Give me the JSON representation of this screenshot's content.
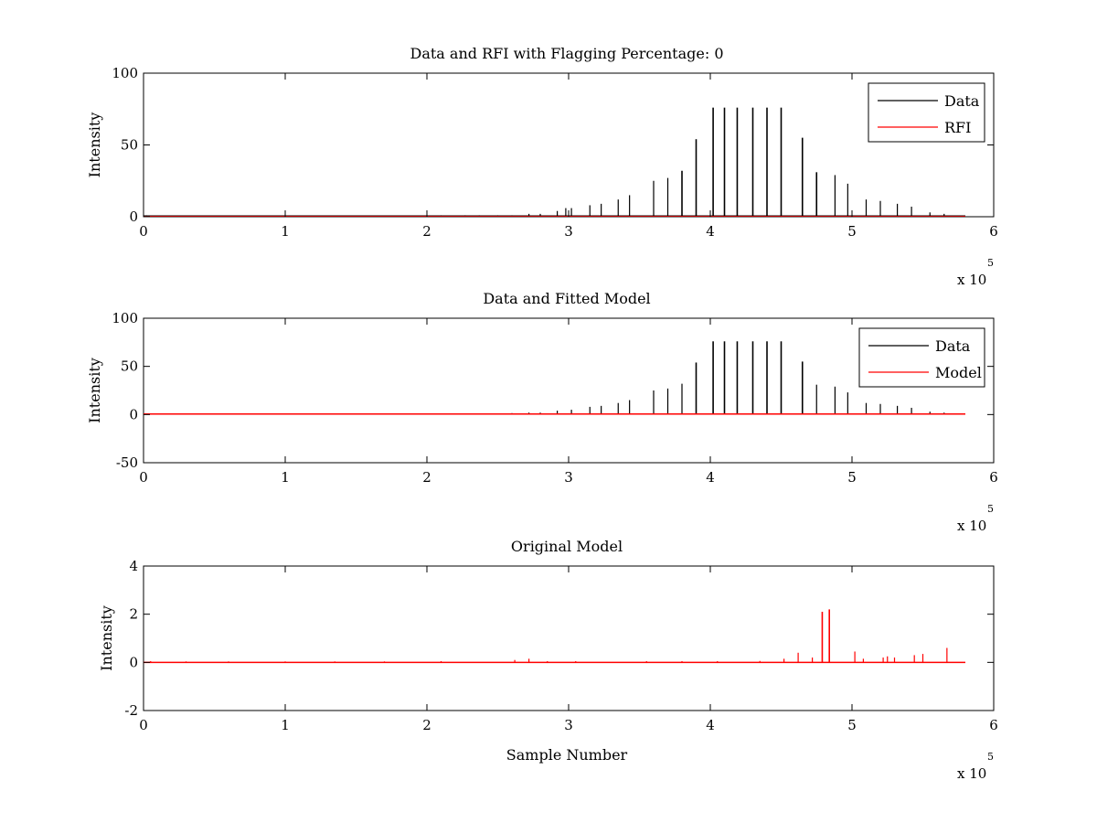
{
  "figure": {
    "background": "#ffffff"
  },
  "chart_data": [
    {
      "type": "line",
      "title": "Data and RFI with Flagging Percentage: 0",
      "xlabel": "",
      "ylabel": "Intensity",
      "xlim": [
        0,
        6
      ],
      "ylim": [
        0,
        100
      ],
      "xticks": [
        0,
        1,
        2,
        3,
        4,
        5,
        6
      ],
      "yticks": [
        0,
        50,
        100
      ],
      "x_multiplier": {
        "base": "x 10",
        "exponent": "5"
      },
      "legend": {
        "placement": "top-right",
        "entries": [
          "Data",
          "RFI"
        ]
      },
      "x_end": 5.8,
      "series": [
        {
          "name": "Data",
          "color": "#000000",
          "baseline": 0.5,
          "spikes": [
            [
              0.02,
              1
            ],
            [
              0.32,
              0.8
            ],
            [
              0.62,
              0.8
            ],
            [
              1.0,
              0.8
            ],
            [
              1.3,
              0.8
            ],
            [
              1.62,
              0.8
            ],
            [
              1.95,
              0.8
            ],
            [
              2.1,
              1
            ],
            [
              2.27,
              1
            ],
            [
              2.37,
              1
            ],
            [
              2.5,
              1
            ],
            [
              2.6,
              1
            ],
            [
              2.72,
              2
            ],
            [
              2.8,
              2
            ],
            [
              2.92,
              4
            ],
            [
              2.98,
              6
            ],
            [
              3.02,
              6
            ],
            [
              3.15,
              8
            ],
            [
              3.23,
              9
            ],
            [
              3.35,
              12
            ],
            [
              3.43,
              15
            ],
            [
              3.6,
              25
            ],
            [
              3.7,
              27
            ],
            [
              3.8,
              32
            ],
            [
              3.9,
              54
            ],
            [
              4.02,
              76
            ],
            [
              4.1,
              76
            ],
            [
              4.19,
              76
            ],
            [
              4.3,
              76
            ],
            [
              4.4,
              76
            ],
            [
              4.5,
              76
            ],
            [
              4.65,
              55
            ],
            [
              4.75,
              31
            ],
            [
              4.88,
              29
            ],
            [
              4.97,
              23
            ],
            [
              5.1,
              12
            ],
            [
              5.2,
              11
            ],
            [
              5.32,
              9
            ],
            [
              5.42,
              7
            ],
            [
              5.55,
              3
            ],
            [
              5.65,
              2
            ]
          ]
        },
        {
          "name": "RFI",
          "color": "#ff0000",
          "baseline": 0,
          "spikes": []
        }
      ]
    },
    {
      "type": "line",
      "title": "Data and Fitted Model",
      "xlabel": "",
      "ylabel": "Intensity",
      "xlim": [
        0,
        6
      ],
      "ylim": [
        -50,
        100
      ],
      "xticks": [
        0,
        1,
        2,
        3,
        4,
        5,
        6
      ],
      "yticks": [
        -50,
        0,
        50,
        100
      ],
      "x_multiplier": {
        "base": "x 10",
        "exponent": "5"
      },
      "legend": {
        "placement": "top-right",
        "entries": [
          "Data",
          "Model"
        ]
      },
      "x_end": 5.8,
      "series": [
        {
          "name": "Data",
          "color": "#000000",
          "baseline": 0.5,
          "spikes": [
            [
              2.27,
              1
            ],
            [
              2.37,
              1
            ],
            [
              2.6,
              1.5
            ],
            [
              2.72,
              2
            ],
            [
              2.8,
              2
            ],
            [
              2.92,
              4
            ],
            [
              3.02,
              5
            ],
            [
              3.15,
              8
            ],
            [
              3.23,
              9
            ],
            [
              3.35,
              12
            ],
            [
              3.43,
              15
            ],
            [
              3.6,
              25
            ],
            [
              3.7,
              27
            ],
            [
              3.8,
              32
            ],
            [
              3.9,
              54
            ],
            [
              4.02,
              76
            ],
            [
              4.1,
              76
            ],
            [
              4.19,
              76
            ],
            [
              4.3,
              76
            ],
            [
              4.4,
              76
            ],
            [
              4.5,
              76
            ],
            [
              4.65,
              55
            ],
            [
              4.75,
              31
            ],
            [
              4.88,
              29
            ],
            [
              4.97,
              23
            ],
            [
              5.1,
              12
            ],
            [
              5.2,
              11
            ],
            [
              5.32,
              9
            ],
            [
              5.42,
              7
            ],
            [
              5.55,
              3
            ],
            [
              5.65,
              2
            ]
          ]
        },
        {
          "name": "Model",
          "color": "#ff0000",
          "baseline": 0.5,
          "spikes": []
        }
      ]
    },
    {
      "type": "line",
      "title": "Original Model",
      "xlabel": "Sample Number",
      "ylabel": "Intensity",
      "xlim": [
        0,
        6
      ],
      "ylim": [
        -2,
        4
      ],
      "xticks": [
        0,
        1,
        2,
        3,
        4,
        5,
        6
      ],
      "yticks": [
        -2,
        0,
        2,
        4
      ],
      "x_multiplier": {
        "base": "x 10",
        "exponent": "5"
      },
      "legend": null,
      "x_end": 5.8,
      "series": [
        {
          "name": "",
          "color": "#ff0000",
          "baseline": 0,
          "spikes": [
            [
              0.05,
              0.05
            ],
            [
              0.3,
              0.04
            ],
            [
              0.6,
              0.04
            ],
            [
              1.0,
              0.04
            ],
            [
              1.35,
              0.04
            ],
            [
              1.7,
              0.04
            ],
            [
              2.1,
              0.05
            ],
            [
              2.62,
              0.1
            ],
            [
              2.72,
              0.15
            ],
            [
              2.85,
              0.05
            ],
            [
              3.05,
              0.05
            ],
            [
              3.55,
              0.05
            ],
            [
              3.8,
              0.05
            ],
            [
              4.05,
              0.05
            ],
            [
              4.35,
              0.06
            ],
            [
              4.52,
              0.15
            ],
            [
              4.62,
              0.4
            ],
            [
              4.72,
              0.2
            ],
            [
              4.79,
              2.1
            ],
            [
              4.84,
              2.2
            ],
            [
              5.02,
              0.45
            ],
            [
              5.08,
              0.15
            ],
            [
              5.22,
              0.2
            ],
            [
              5.25,
              0.25
            ],
            [
              5.3,
              0.2
            ],
            [
              5.44,
              0.3
            ],
            [
              5.5,
              0.35
            ],
            [
              5.67,
              0.6
            ]
          ]
        }
      ]
    }
  ]
}
